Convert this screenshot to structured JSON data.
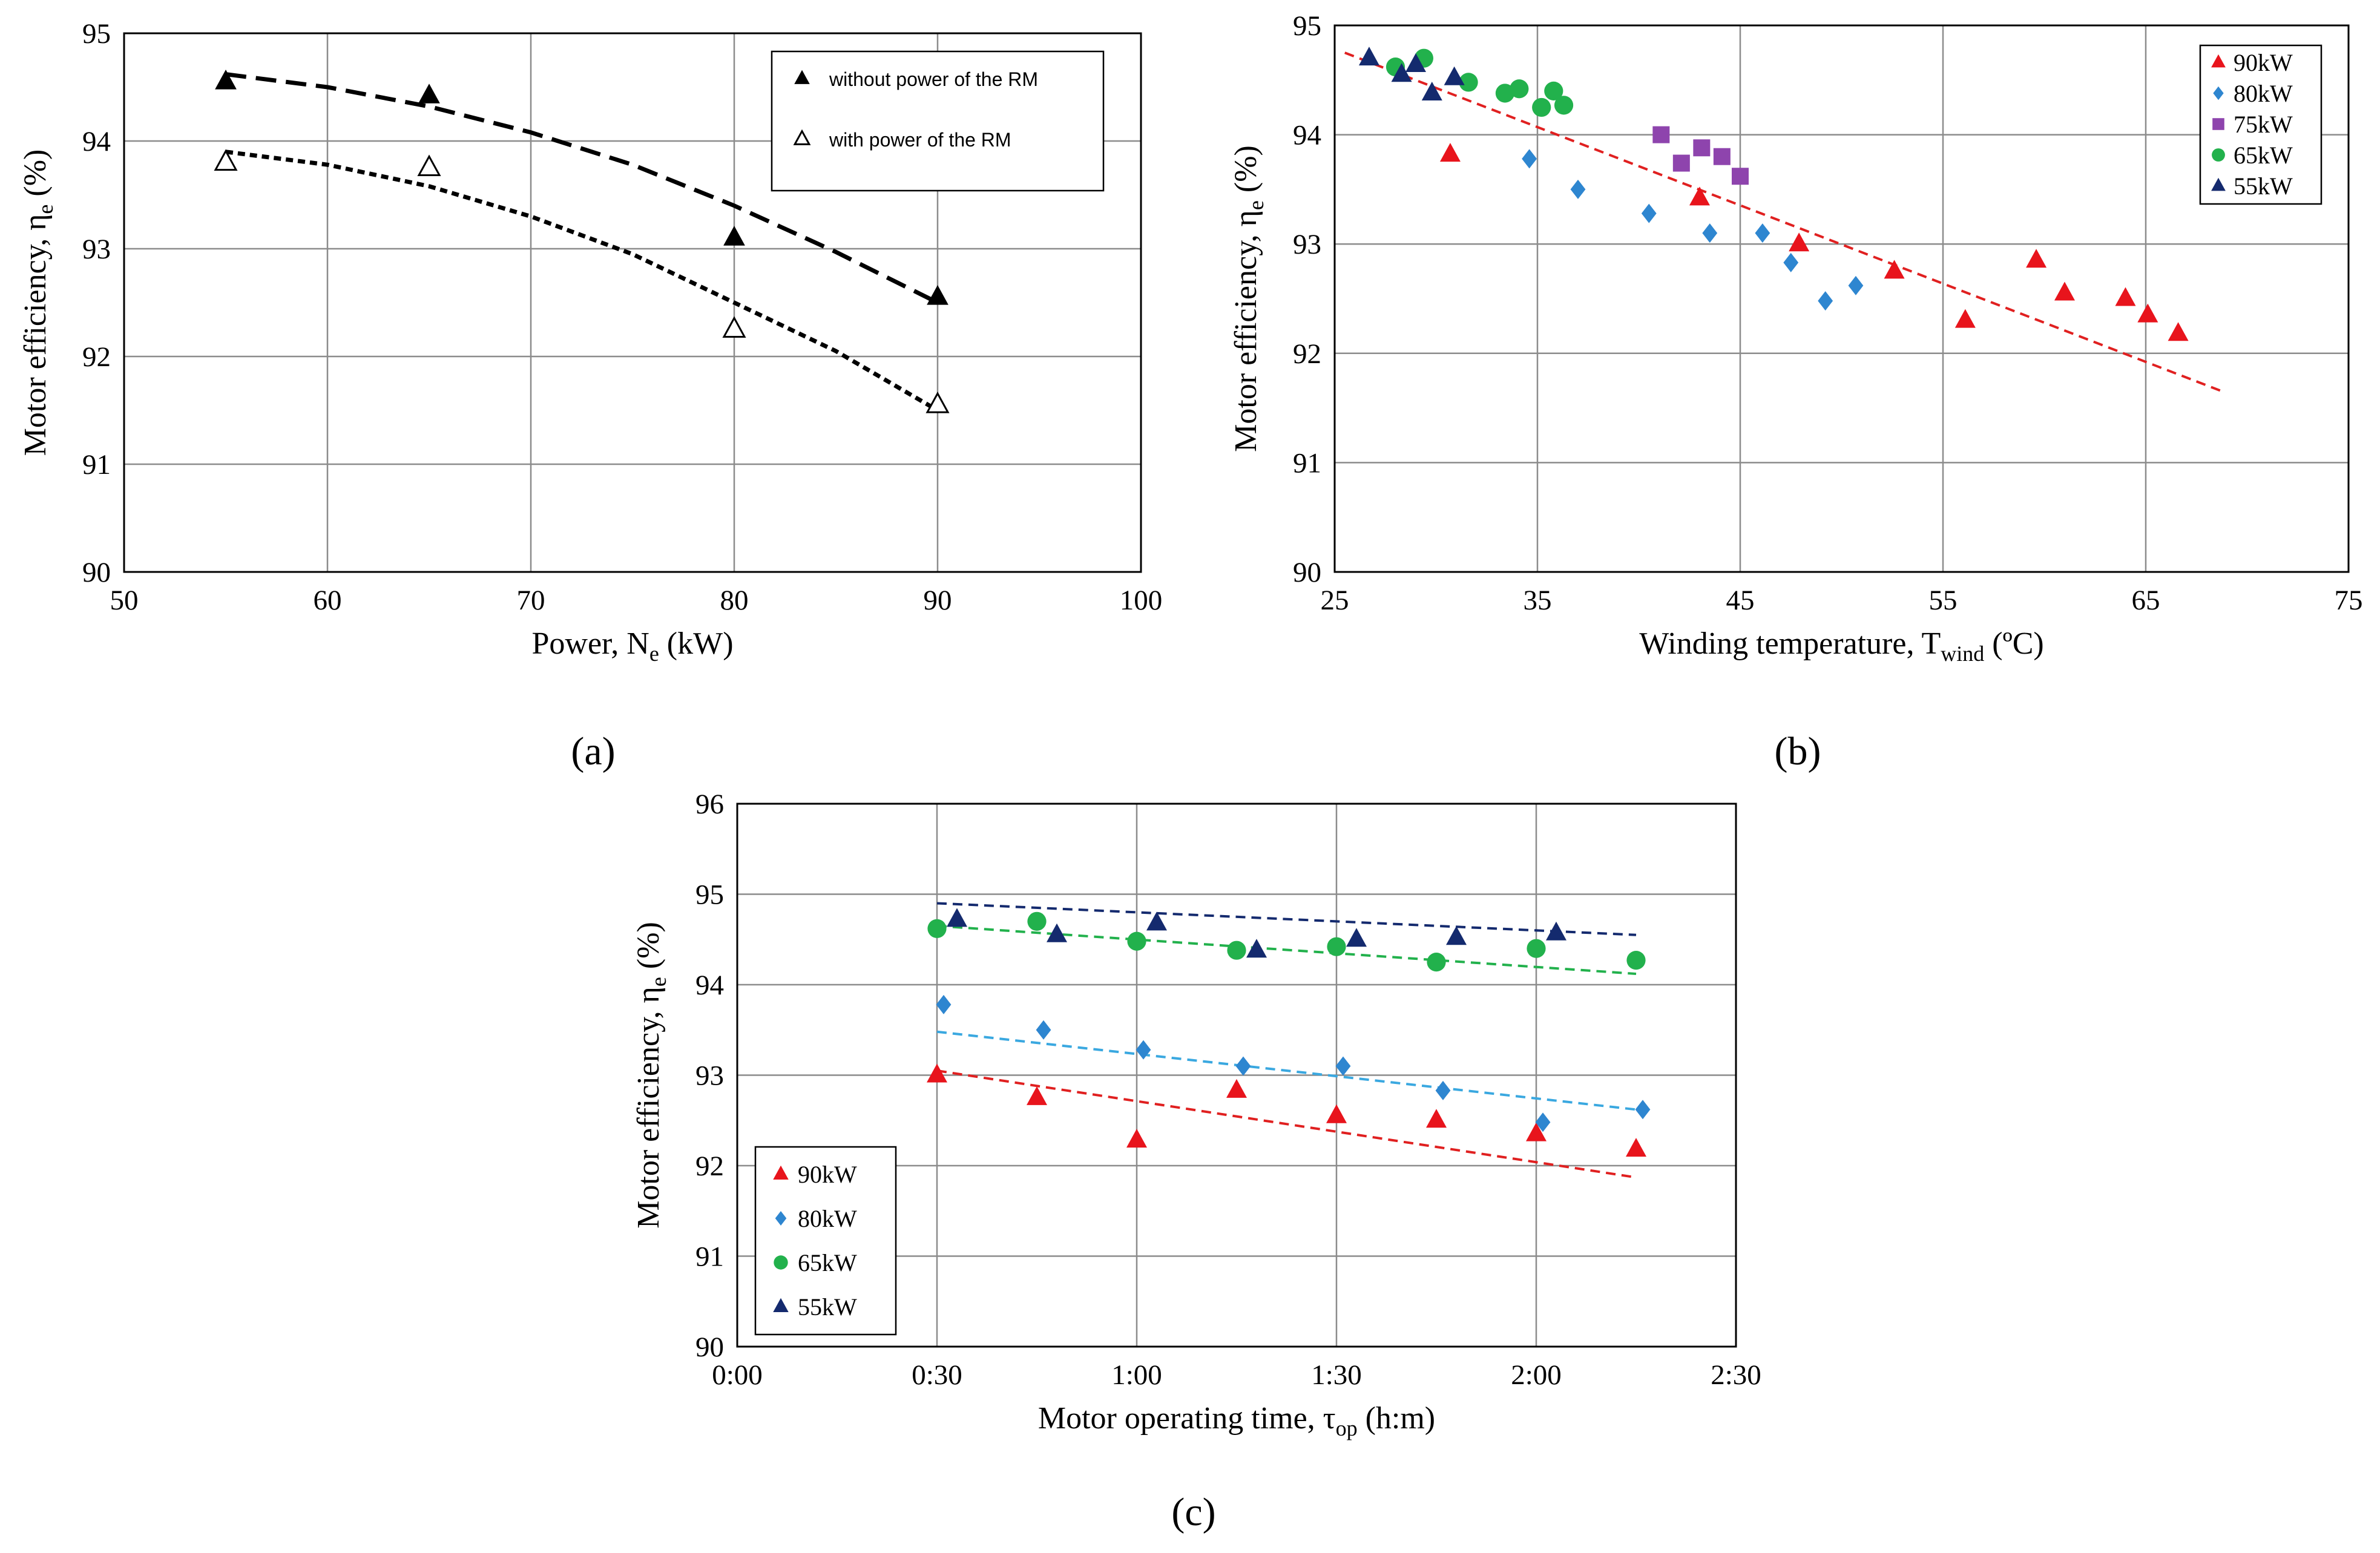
{
  "chart_data": [
    {
      "panel": "(a)",
      "type": "scatter",
      "xlabel": {
        "text": "Power, N",
        "sub": "e",
        "tail": " (kW)"
      },
      "ylabel": {
        "text": "Motor efficiency, η",
        "sub": "e",
        "tail": " (%)"
      },
      "xlim": [
        50,
        100
      ],
      "ylim": [
        90,
        95
      ],
      "xticks": [
        "50",
        "60",
        "70",
        "80",
        "90",
        "100"
      ],
      "yticks": [
        "90",
        "91",
        "92",
        "93",
        "94",
        "95"
      ],
      "grid": true,
      "legend_position": "top-right",
      "series": [
        {
          "name": "without power of the RM",
          "marker": "triangle-filled",
          "color": "#000000",
          "x": [
            55,
            65,
            80,
            90
          ],
          "y": [
            94.55,
            94.42,
            93.1,
            92.55
          ],
          "trend": {
            "style": "long-dash",
            "x": [
              55,
              60,
              65,
              70,
              75,
              80,
              85,
              90
            ],
            "y": [
              94.62,
              94.5,
              94.32,
              94.08,
              93.78,
              93.4,
              92.97,
              92.5
            ]
          }
        },
        {
          "name": "with power of the RM",
          "marker": "triangle-open",
          "color": "#000000",
          "x": [
            55,
            65,
            80,
            90
          ],
          "y": [
            93.8,
            93.75,
            92.25,
            91.55
          ],
          "trend": {
            "style": "short-dash",
            "x": [
              55,
              60,
              65,
              70,
              75,
              80,
              85,
              90
            ],
            "y": [
              93.9,
              93.78,
              93.58,
              93.3,
              92.95,
              92.5,
              92.05,
              91.5
            ]
          }
        }
      ]
    },
    {
      "panel": "(b)",
      "type": "scatter",
      "xlabel": {
        "text": "Winding temperature, T",
        "sub": "wind",
        "tail": " (ºC)"
      },
      "ylabel": {
        "text": "Motor efficiency, η",
        "sub": "e",
        "tail": " (%)"
      },
      "xlim": [
        25,
        75
      ],
      "ylim": [
        90,
        95
      ],
      "xticks": [
        "25",
        "35",
        "45",
        "55",
        "65",
        "75"
      ],
      "yticks": [
        "90",
        "91",
        "92",
        "93",
        "94",
        "95"
      ],
      "grid": true,
      "legend_position": "top-right",
      "trend": {
        "style": "dash",
        "color": "#e02020",
        "x": [
          25.5,
          68.8
        ],
        "y": [
          94.75,
          91.65
        ]
      },
      "series": [
        {
          "name": "90kW",
          "marker": "triangle",
          "color": "#e8141c",
          "x": [
            30.7,
            43,
            47.9,
            52.6,
            56.1,
            59.6,
            61,
            64,
            65.1,
            66.6
          ],
          "y": [
            93.82,
            93.42,
            93.0,
            92.75,
            92.3,
            92.85,
            92.55,
            92.5,
            92.35,
            92.18
          ]
        },
        {
          "name": "80kW",
          "marker": "diamond",
          "color": "#2e86d0",
          "x": [
            34.6,
            37,
            40.5,
            43.5,
            46.1,
            47.5,
            49.2,
            50.7
          ],
          "y": [
            93.78,
            93.5,
            93.28,
            93.1,
            93.1,
            92.83,
            92.48,
            92.62
          ]
        },
        {
          "name": "75kW",
          "marker": "square",
          "color": "#8e44ad",
          "x": [
            41.1,
            42.1,
            43.1,
            44.1,
            45.0
          ],
          "y": [
            94.0,
            93.74,
            93.88,
            93.8,
            93.62
          ]
        },
        {
          "name": "65kW",
          "marker": "circle",
          "color": "#22b14c",
          "x": [
            28,
            29.4,
            31.6,
            33.4,
            34.1,
            35.2,
            35.8,
            36.3
          ],
          "y": [
            94.62,
            94.7,
            94.48,
            94.38,
            94.42,
            94.25,
            94.4,
            94.27
          ]
        },
        {
          "name": "55kW",
          "marker": "triangle",
          "color": "#142a6e",
          "x": [
            26.7,
            28.3,
            29.0,
            29.8,
            30.9
          ],
          "y": [
            94.7,
            94.55,
            94.64,
            94.38,
            94.52
          ]
        }
      ]
    },
    {
      "panel": "(c)",
      "type": "scatter",
      "xlabel": {
        "text": "Motor operating time, τ",
        "sub": "op",
        "tail": " (h:m)"
      },
      "ylabel": {
        "text": "Motor efficiency, η",
        "sub": "e",
        "tail": " (%)"
      },
      "xlim": [
        0,
        150
      ],
      "ylim": [
        90,
        96
      ],
      "x_unit": "minutes",
      "xticks": [
        "0:00",
        "0:30",
        "1:00",
        "1:30",
        "2:00",
        "2:30"
      ],
      "yticks": [
        "90",
        "91",
        "92",
        "93",
        "94",
        "95",
        "96"
      ],
      "grid": true,
      "legend_position": "bottom-left",
      "series": [
        {
          "name": "90kW",
          "marker": "triangle",
          "color": "#e8141c",
          "x": [
            30,
            45,
            60,
            75,
            90,
            105,
            120,
            135
          ],
          "y": [
            93.0,
            92.75,
            92.28,
            92.83,
            92.55,
            92.5,
            92.35,
            92.18
          ],
          "trend": {
            "style": "dash",
            "color": "#e02020",
            "x": [
              30,
              135
            ],
            "y": [
              93.05,
              91.87
            ]
          }
        },
        {
          "name": "80kW",
          "marker": "diamond",
          "color": "#2e86d0",
          "x": [
            31,
            46,
            61,
            76,
            91,
            106,
            121,
            136
          ],
          "y": [
            93.78,
            93.5,
            93.28,
            93.1,
            93.1,
            92.83,
            92.48,
            92.62
          ],
          "trend": {
            "style": "dash",
            "color": "#3aa8e0",
            "x": [
              30,
              135
            ],
            "y": [
              93.48,
              92.62
            ]
          }
        },
        {
          "name": "65kW",
          "marker": "circle",
          "color": "#22b14c",
          "x": [
            30,
            45,
            60,
            75,
            90,
            105,
            120,
            135
          ],
          "y": [
            94.62,
            94.7,
            94.48,
            94.38,
            94.42,
            94.25,
            94.4,
            94.27
          ],
          "trend": {
            "style": "dash",
            "color": "#22b14c",
            "x": [
              30,
              135
            ],
            "y": [
              94.65,
              94.12
            ]
          }
        },
        {
          "name": "55kW",
          "marker": "triangle",
          "color": "#142a6e",
          "x": [
            33,
            48,
            63,
            78,
            93,
            108,
            123
          ],
          "y": [
            94.72,
            94.55,
            94.68,
            94.38,
            94.5,
            94.52,
            94.57
          ],
          "trend": {
            "style": "dash",
            "color": "#142a6e",
            "x": [
              30,
              135
            ],
            "y": [
              94.9,
              94.55
            ]
          }
        }
      ]
    }
  ]
}
